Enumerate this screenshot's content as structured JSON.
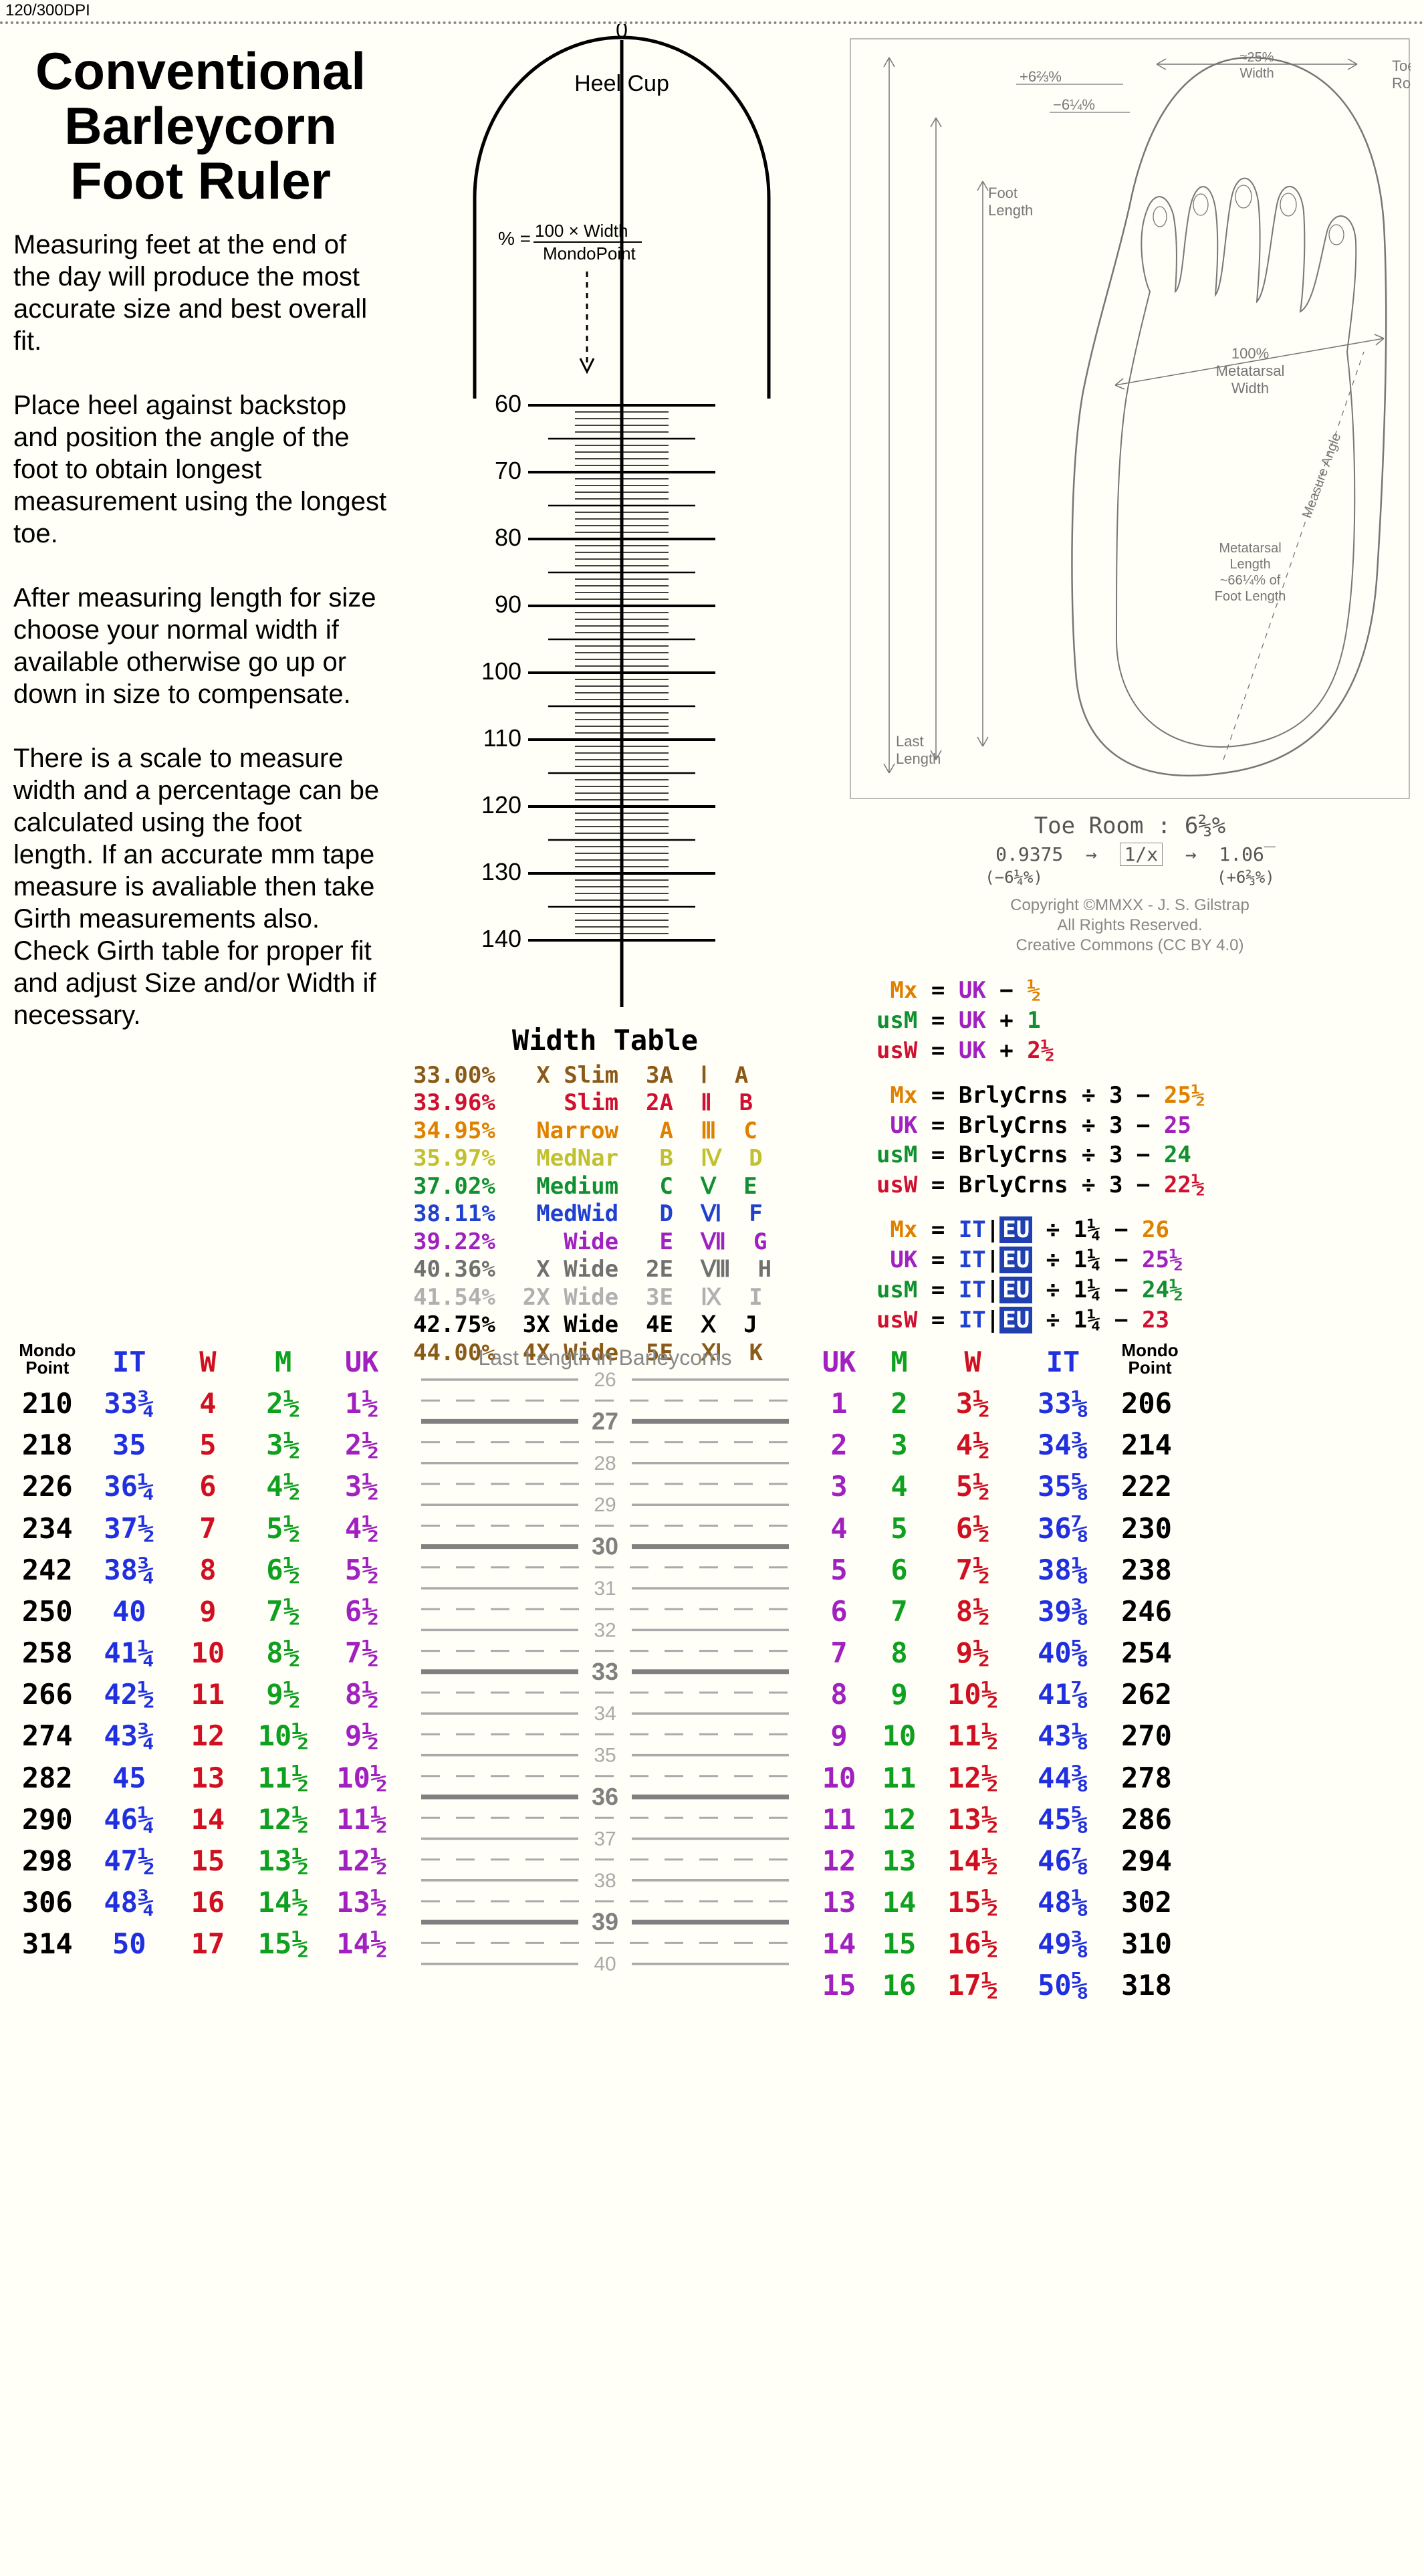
{
  "dpi_label": "120/300DPI",
  "title_lines": [
    "Conventional",
    "Barleycorn",
    "Foot Ruler"
  ],
  "instructions": [
    "Measuring feet at the end of the day will produce the most accurate size and best overall fit.",
    "Place heel against backstop and position the angle of the foot to obtain longest measurement using the longest toe.",
    "After measuring length for size choose your normal width if available otherwise go up or down in size to compensate.",
    "There is a scale to measure width and a percentage can be calculated using the foot length.  If an accurate mm tape measure is avaliable then take Girth measurements also.  Check Girth table for proper fit and adjust Size and/or Width if necessary."
  ],
  "heel_cup_label": "Heel  Cup",
  "zero_label": "0",
  "pct_formula_top": "100 × Width",
  "pct_formula_bot": "MondoPoint",
  "pct_eq": "% =",
  "width_ruler": {
    "tick_labels": [
      "60",
      "70",
      "80",
      "90",
      "100",
      "110",
      "120",
      "130",
      "140"
    ]
  },
  "width_table_heading": "Width Table",
  "width_table": {
    "rows": [
      {
        "pct": "33.00%",
        "name": "X Slim",
        "e": "3A",
        "roman": "Ⅰ",
        "k": "A",
        "color": "#8a5a1a"
      },
      {
        "pct": "33.96%",
        "name": "Slim",
        "e": "2A",
        "roman": "Ⅱ",
        "k": "B",
        "color": "#d01030"
      },
      {
        "pct": "34.95%",
        "name": "Narrow",
        "e": "A",
        "roman": "Ⅲ",
        "k": "C",
        "color": "#e08000"
      },
      {
        "pct": "35.97%",
        "name": "MedNar",
        "e": "B",
        "roman": "Ⅳ",
        "k": "D",
        "color": "#c0c030"
      },
      {
        "pct": "37.02%",
        "name": "Medium",
        "e": "C",
        "roman": "Ⅴ",
        "k": "E",
        "color": "#109030"
      },
      {
        "pct": "38.11%",
        "name": "MedWid",
        "e": "D",
        "roman": "Ⅵ",
        "k": "F",
        "color": "#2040d0"
      },
      {
        "pct": "39.22%",
        "name": "Wide",
        "e": "E",
        "roman": "Ⅶ",
        "k": "G",
        "color": "#a020c0"
      },
      {
        "pct": "40.36%",
        "name": "X Wide",
        "e": "2E",
        "roman": "Ⅷ",
        "k": "H",
        "color": "#707070"
      },
      {
        "pct": "41.54%",
        "name": "2X Wide",
        "e": "3E",
        "roman": "Ⅸ",
        "k": "I",
        "color": "#b0b0b0"
      },
      {
        "pct": "42.75%",
        "name": "3X Wide",
        "e": "4E",
        "roman": "Ⅹ",
        "k": "J",
        "color": "#000000"
      },
      {
        "pct": "44.00%",
        "name": "4X Wide",
        "e": "5E",
        "roman": "Ⅺ",
        "k": "K",
        "color": "#8a5a1a"
      }
    ]
  },
  "foot_diagram": {
    "labels": {
      "plus": "+6⅔%",
      "minus": "−6¼%",
      "width_top": "≈25%\nWidth",
      "toe_room": "Toe\nRoom",
      "foot_length": "Foot\nLength",
      "metatarsal_width": "100%\nMetatarsal\nWidth",
      "measure_angle": "Measure Angle",
      "metatarsal_length": "Metatarsal\nLength\n~66¼% of\nFoot Length",
      "last_length": "Last\nLength"
    }
  },
  "toe_room_line": "Toe Room : 6⅔%",
  "ratio_left": "0.9375",
  "ratio_left_sub": "(−6¼%)",
  "ratio_mid": "⁠1∕x⁠",
  "ratio_right": "1.06̅",
  "ratio_right_sub": "(+6⅔%)",
  "copyright": [
    "Copyright ©MMXX - J. S. Gilstrap",
    "All Rights Reserved.",
    "Creative Commons (CC BY 4.0)"
  ],
  "formulas": {
    "colors": {
      "mx": "#e08000",
      "usm": "#109030",
      "usw": "#d01030",
      "uk": "#a020c0",
      "it": "#2040d0",
      "eu_bg": "#2040b0",
      "half": "#e08000"
    },
    "block1": [
      {
        "lhs": "Mx",
        "lhs_color": "#e08000",
        "rhs": [
          "UK",
          " − ",
          "½"
        ],
        "rhs_colors": [
          "#a020c0",
          "#000",
          "#e08000"
        ]
      },
      {
        "lhs": "usM",
        "lhs_color": "#109030",
        "rhs": [
          "UK",
          " + ",
          "1"
        ],
        "rhs_colors": [
          "#a020c0",
          "#000",
          "#109030"
        ]
      },
      {
        "lhs": "usW",
        "lhs_color": "#d01030",
        "rhs": [
          "UK",
          " + ",
          "2½"
        ],
        "rhs_colors": [
          "#a020c0",
          "#000",
          "#d01030"
        ]
      }
    ],
    "block2": [
      {
        "lhs": "Mx",
        "lhs_color": "#e08000",
        "rhs": "BrlyCrns ÷ 3 − 25½",
        "tail_color": "#e08000",
        "tail": "25½"
      },
      {
        "lhs": "UK",
        "lhs_color": "#a020c0",
        "rhs": "BrlyCrns ÷ 3 − 25",
        "tail_color": "#a020c0",
        "tail": "25"
      },
      {
        "lhs": "usM",
        "lhs_color": "#109030",
        "rhs": "BrlyCrns ÷ 3 − 24",
        "tail_color": "#109030",
        "tail": "24"
      },
      {
        "lhs": "usW",
        "lhs_color": "#d01030",
        "rhs": "BrlyCrns ÷ 3 − 22½",
        "tail_color": "#d01030",
        "tail": "22½"
      }
    ],
    "block3": [
      {
        "lhs": "Mx",
        "lhs_color": "#e08000",
        "tail": "26",
        "tail_color": "#e08000"
      },
      {
        "lhs": "UK",
        "lhs_color": "#a020c0",
        "tail": "25½",
        "tail_color": "#a020c0"
      },
      {
        "lhs": "usM",
        "lhs_color": "#109030",
        "tail": "24½",
        "tail_color": "#109030"
      },
      {
        "lhs": "usW",
        "lhs_color": "#d01030",
        "tail": "23",
        "tail_color": "#d01030"
      }
    ],
    "it_label": "IT",
    "eu_label": "EU",
    "div_label": " ÷ 1¼ − "
  },
  "size_table": {
    "header_left": [
      "Mondo\nPoint",
      "IT",
      "W",
      "M",
      "UK"
    ],
    "header_right": [
      "UK",
      "M",
      "W",
      "IT",
      "Mondo\nPoint"
    ],
    "last_header": "Last Length in Barleycorns",
    "last_ticks": [
      26,
      27,
      28,
      29,
      30,
      31,
      32,
      33,
      34,
      35,
      36,
      37,
      38,
      39,
      40
    ],
    "bold_ticks": [
      27,
      30,
      33,
      36,
      39
    ],
    "left_rows": [
      {
        "mondo": "210",
        "it": "33¾",
        "w": "4",
        "m": "2½",
        "uk": "1½"
      },
      {
        "mondo": "218",
        "it": "35",
        "w": "5",
        "m": "3½",
        "uk": "2½"
      },
      {
        "mondo": "226",
        "it": "36¼",
        "w": "6",
        "m": "4½",
        "uk": "3½"
      },
      {
        "mondo": "234",
        "it": "37½",
        "w": "7",
        "m": "5½",
        "uk": "4½"
      },
      {
        "mondo": "242",
        "it": "38¾",
        "w": "8",
        "m": "6½",
        "uk": "5½"
      },
      {
        "mondo": "250",
        "it": "40",
        "w": "9",
        "m": "7½",
        "uk": "6½"
      },
      {
        "mondo": "258",
        "it": "41¼",
        "w": "10",
        "m": "8½",
        "uk": "7½"
      },
      {
        "mondo": "266",
        "it": "42½",
        "w": "11",
        "m": "9½",
        "uk": "8½"
      },
      {
        "mondo": "274",
        "it": "43¾",
        "w": "12",
        "m": "10½",
        "uk": "9½"
      },
      {
        "mondo": "282",
        "it": "45",
        "w": "13",
        "m": "11½",
        "uk": "10½"
      },
      {
        "mondo": "290",
        "it": "46¼",
        "w": "14",
        "m": "12½",
        "uk": "11½"
      },
      {
        "mondo": "298",
        "it": "47½",
        "w": "15",
        "m": "13½",
        "uk": "12½"
      },
      {
        "mondo": "306",
        "it": "48¾",
        "w": "16",
        "m": "14½",
        "uk": "13½"
      },
      {
        "mondo": "314",
        "it": "50",
        "w": "17",
        "m": "15½",
        "uk": "14½"
      }
    ],
    "right_rows": [
      {
        "uk": "1",
        "m": "2",
        "w": "3½",
        "it": "33⅛",
        "mondo": "206"
      },
      {
        "uk": "2",
        "m": "3",
        "w": "4½",
        "it": "34⅜",
        "mondo": "214"
      },
      {
        "uk": "3",
        "m": "4",
        "w": "5½",
        "it": "35⅝",
        "mondo": "222"
      },
      {
        "uk": "4",
        "m": "5",
        "w": "6½",
        "it": "36⅞",
        "mondo": "230"
      },
      {
        "uk": "5",
        "m": "6",
        "w": "7½",
        "it": "38⅛",
        "mondo": "238"
      },
      {
        "uk": "6",
        "m": "7",
        "w": "8½",
        "it": "39⅜",
        "mondo": "246"
      },
      {
        "uk": "7",
        "m": "8",
        "w": "9½",
        "it": "40⅝",
        "mondo": "254"
      },
      {
        "uk": "8",
        "m": "9",
        "w": "10½",
        "it": "41⅞",
        "mondo": "262"
      },
      {
        "uk": "9",
        "m": "10",
        "w": "11½",
        "it": "43⅛",
        "mondo": "270"
      },
      {
        "uk": "10",
        "m": "11",
        "w": "12½",
        "it": "44⅜",
        "mondo": "278"
      },
      {
        "uk": "11",
        "m": "12",
        "w": "13½",
        "it": "45⅝",
        "mondo": "286"
      },
      {
        "uk": "12",
        "m": "13",
        "w": "14½",
        "it": "46⅞",
        "mondo": "294"
      },
      {
        "uk": "13",
        "m": "14",
        "w": "15½",
        "it": "48⅛",
        "mondo": "302"
      },
      {
        "uk": "14",
        "m": "15",
        "w": "16½",
        "it": "49⅜",
        "mondo": "310"
      },
      {
        "uk": "15",
        "m": "16",
        "w": "17½",
        "it": "50⅝",
        "mondo": "318"
      }
    ]
  }
}
